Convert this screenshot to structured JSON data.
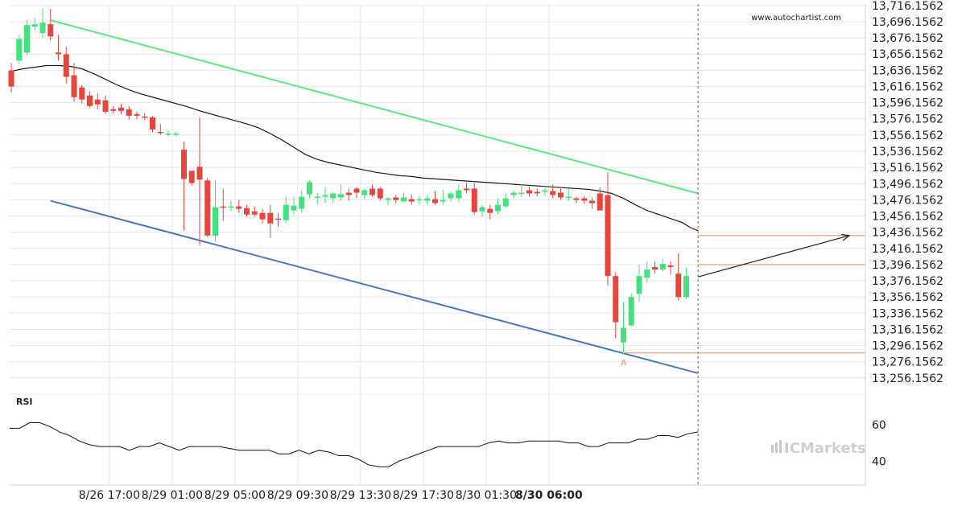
{
  "watermark": "www.autochartist.com",
  "broker_logo": "ICMarkets",
  "colors": {
    "bull": "#44e27d",
    "bear": "#e8453c",
    "resistance": "#5ce87e",
    "support": "#4a78b8",
    "ma": "#1a1a1a",
    "level": "#e8895a",
    "grid": "#e6e6e6",
    "text": "#222222"
  },
  "chart_data": [
    {
      "type": "candlestick",
      "title": "",
      "y_tick_labels": [
        "13,716.1562",
        "13,696.1562",
        "13,676.1562",
        "13,656.1562",
        "13,636.1562",
        "13,616.1562",
        "13,596.1562",
        "13,576.1562",
        "13,556.1562",
        "13,536.1562",
        "13,516.1562",
        "13,496.1562",
        "13,476.1562",
        "13,456.1562",
        "13,436.1562",
        "13,416.1562",
        "13,396.1562",
        "13,376.1562",
        "13,356.1562",
        "13,336.1562",
        "13,316.1562",
        "13,296.1562",
        "13,276.1562",
        "13,256.1562"
      ],
      "ylim": [
        13248,
        13718
      ],
      "x_tick_labels": [
        "8/26 17:00",
        "8/29 01:00",
        "8/29 05:00",
        "8/29 09:30",
        "8/29 13:30",
        "8/29 17:30",
        "8/30 01:30",
        "8/30 06:00"
      ],
      "x_tick_index": [
        12.5,
        20.5,
        28.5,
        36.5,
        44.5,
        52.5,
        60.5,
        68.5
      ],
      "bold_x_tick": "8/30 06:00",
      "candles": [
        [
          13636,
          13616,
          13645,
          13609
        ],
        [
          13648,
          13675,
          13680,
          13643
        ],
        [
          13658,
          13692,
          13698,
          13655
        ],
        [
          13690,
          13693,
          13701,
          13685
        ],
        [
          13682,
          13695,
          13712,
          13676
        ],
        [
          13693,
          13678,
          13712,
          13673
        ],
        [
          13658,
          13656,
          13680,
          13648
        ],
        [
          13656,
          13628,
          13665,
          13620
        ],
        [
          13630,
          13603,
          13645,
          13597
        ],
        [
          13615,
          13600,
          13618,
          13595
        ],
        [
          13605,
          13592,
          13610,
          13590
        ],
        [
          13600,
          13594,
          13608,
          13588
        ],
        [
          13599,
          13585,
          13605,
          13582
        ],
        [
          13588,
          13586,
          13592,
          13583
        ],
        [
          13590,
          13586,
          13595,
          13582
        ],
        [
          13588,
          13580,
          13592,
          13575
        ],
        [
          13582,
          13580,
          13585,
          13576
        ],
        [
          13579,
          13578,
          13583,
          13575
        ],
        [
          13578,
          13563,
          13580,
          13560
        ],
        [
          13560,
          13559,
          13570,
          13556
        ],
        [
          13558,
          13558,
          13562,
          13554
        ],
        [
          13558,
          13558,
          13560,
          13555
        ],
        [
          13538,
          13502,
          13548,
          13438
        ],
        [
          13512,
          13497,
          13512,
          13494
        ],
        [
          13517,
          13501,
          13578,
          13420
        ],
        [
          13500,
          13432,
          13503,
          13430
        ],
        [
          13432,
          13467,
          13500,
          13425
        ],
        [
          13468,
          13467,
          13490,
          13450
        ],
        [
          13468,
          13468,
          13475,
          13462
        ],
        [
          13468,
          13465,
          13476,
          13460
        ],
        [
          13466,
          13458,
          13470,
          13455
        ],
        [
          13462,
          13458,
          13468,
          13455
        ],
        [
          13460,
          13452,
          13465,
          13447
        ],
        [
          13460,
          13447,
          13470,
          13429
        ],
        [
          13453,
          13452,
          13460,
          13443
        ],
        [
          13451,
          13470,
          13480,
          13447
        ],
        [
          13463,
          13469,
          13480,
          13457
        ],
        [
          13465,
          13480,
          13488,
          13460
        ],
        [
          13483,
          13498,
          13500,
          13478
        ],
        [
          13479,
          13480,
          13485,
          13470
        ],
        [
          13480,
          13482,
          13492,
          13472
        ],
        [
          13478,
          13484,
          13486,
          13472
        ],
        [
          13479,
          13483,
          13495,
          13475
        ],
        [
          13485,
          13482,
          13490,
          13475
        ],
        [
          13490,
          13485,
          13492,
          13478
        ],
        [
          13482,
          13488,
          13490,
          13477
        ],
        [
          13490,
          13482,
          13495,
          13480
        ],
        [
          13490,
          13478,
          13492,
          13475
        ],
        [
          13476,
          13478,
          13480,
          13470
        ],
        [
          13479,
          13476,
          13482,
          13472
        ],
        [
          13474,
          13479,
          13485,
          13474
        ],
        [
          13477,
          13474,
          13483,
          13470
        ],
        [
          13477,
          13477,
          13481,
          13470
        ],
        [
          13475,
          13478,
          13482,
          13470
        ],
        [
          13477,
          13472,
          13487,
          13470
        ],
        [
          13474,
          13476,
          13488,
          13470
        ],
        [
          13478,
          13484,
          13486,
          13474
        ],
        [
          13478,
          13488,
          13495,
          13474
        ],
        [
          13490,
          13488,
          13497,
          13484
        ],
        [
          13490,
          13461,
          13497,
          13458
        ],
        [
          13462,
          13467,
          13470,
          13455
        ],
        [
          13465,
          13460,
          13470,
          13452
        ],
        [
          13462,
          13470,
          13478,
          13458
        ],
        [
          13468,
          13478,
          13485,
          13466
        ],
        [
          13482,
          13485,
          13488,
          13478
        ],
        [
          13485,
          13485,
          13495,
          13480
        ],
        [
          13488,
          13484,
          13492,
          13480
        ],
        [
          13486,
          13484,
          13490,
          13480
        ],
        [
          13486,
          13488,
          13491,
          13481
        ],
        [
          13487,
          13482,
          13495,
          13478
        ],
        [
          13485,
          13479,
          13490,
          13476
        ],
        [
          13480,
          13480,
          13490,
          13475
        ],
        [
          13478,
          13476,
          13480,
          13472
        ],
        [
          13478,
          13475,
          13481,
          13471
        ],
        [
          13475,
          13472,
          13479,
          13465
        ],
        [
          13484,
          13463,
          13492,
          13465
        ],
        [
          13482,
          13382,
          13510,
          13370
        ],
        [
          13382,
          13325,
          13386,
          13305
        ],
        [
          13300,
          13318,
          13350,
          13285
        ],
        [
          13321,
          13356,
          13360,
          13320
        ],
        [
          13360,
          13382,
          13396,
          13350
        ],
        [
          13380,
          13390,
          13400,
          13374
        ],
        [
          13393,
          13390,
          13400,
          13385
        ],
        [
          13390,
          13397,
          13403,
          13388
        ],
        [
          13395,
          13393,
          13400,
          13384
        ],
        [
          13385,
          13356,
          13410,
          13352
        ],
        [
          13356,
          13382,
          13392,
          13354
        ]
      ],
      "ma": [
        13635,
        13638,
        13640,
        13642,
        13642,
        13641,
        13638,
        13632,
        13625,
        13618,
        13612,
        13607,
        13603,
        13599,
        13595,
        13591,
        13586,
        13582,
        13578,
        13574,
        13570,
        13565,
        13558,
        13550,
        13541,
        13532,
        13526,
        13522,
        13519,
        13516,
        13513,
        13510,
        13508,
        13506,
        13505,
        13503,
        13502,
        13501,
        13500,
        13499,
        13498,
        13497,
        13496,
        13495,
        13494,
        13493,
        13492,
        13491,
        13490,
        13489,
        13487,
        13484,
        13478,
        13470,
        13463,
        13458,
        13453,
        13448,
        13442,
        13438
      ],
      "ma_x": [
        0,
        1.5,
        3,
        4.5,
        6,
        7.5,
        9,
        10.5,
        12,
        13.5,
        15,
        16.5,
        18,
        19.5,
        21,
        22.5,
        24,
        25.5,
        27,
        28.5,
        30,
        31.5,
        33,
        34.5,
        36,
        37.5,
        39,
        40.5,
        42,
        43.5,
        45,
        46.5,
        48,
        49.5,
        51,
        52.5,
        54,
        55.5,
        57,
        58.5,
        60,
        61.5,
        63,
        64.5,
        66,
        67.5,
        69,
        70.5,
        72,
        73.5,
        75,
        76.5,
        78,
        79.5,
        81,
        82.5,
        84,
        85.5,
        86.5,
        87.5
      ],
      "resistance_line": [
        [
          5,
          13698
        ],
        [
          87.5,
          13484
        ]
      ],
      "support_line": [
        [
          5,
          13475
        ],
        [
          87.5,
          13262
        ]
      ],
      "horizontal_levels": [
        13432,
        13396,
        13287
      ],
      "forecast_arrow": [
        [
          87.5,
          13381
        ],
        [
          108,
          13432
        ]
      ],
      "point_label": "A",
      "point_label_index": 78,
      "rsi": {
        "label": "RSI",
        "tick_labels": [
          "60",
          "40"
        ],
        "tick_values": [
          60,
          40
        ],
        "ylim": [
          27,
          70
        ],
        "values": [
          58,
          58,
          61,
          61,
          59,
          56,
          54,
          51,
          49,
          48,
          48,
          48,
          46,
          48,
          48,
          50,
          48,
          46,
          48,
          48,
          48,
          48,
          47,
          46,
          46,
          46,
          46,
          44,
          44,
          46,
          44,
          46,
          45,
          43,
          43,
          41,
          38,
          37,
          37,
          40,
          42,
          44,
          46,
          48,
          48,
          48,
          48,
          48,
          50,
          51,
          50,
          50,
          51,
          51,
          51,
          51,
          50,
          50,
          48,
          48,
          50,
          50,
          50,
          52,
          52,
          54,
          54,
          53,
          55,
          56
        ]
      }
    }
  ]
}
